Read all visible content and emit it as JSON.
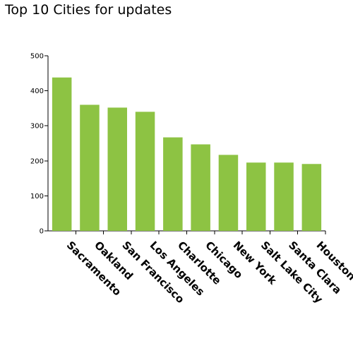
{
  "chart_data": {
    "type": "bar",
    "title": "Top 10 Cities for updates",
    "xlabel": "",
    "ylabel": "",
    "categories": [
      "Sacramento",
      "Oakland",
      "San Francisco",
      "Los Angeles",
      "Charlotte",
      "Chicago",
      "New York",
      "Salt Lake City",
      "Santa Clara",
      "Houston"
    ],
    "values": [
      438,
      360,
      352,
      340,
      267,
      247,
      217,
      195,
      195,
      191
    ],
    "ylim": [
      0,
      500
    ],
    "yticks": [
      "0",
      "100",
      "200",
      "300",
      "400",
      "500"
    ],
    "grid": false,
    "legend": "none",
    "bar_color": "#8dc343"
  }
}
